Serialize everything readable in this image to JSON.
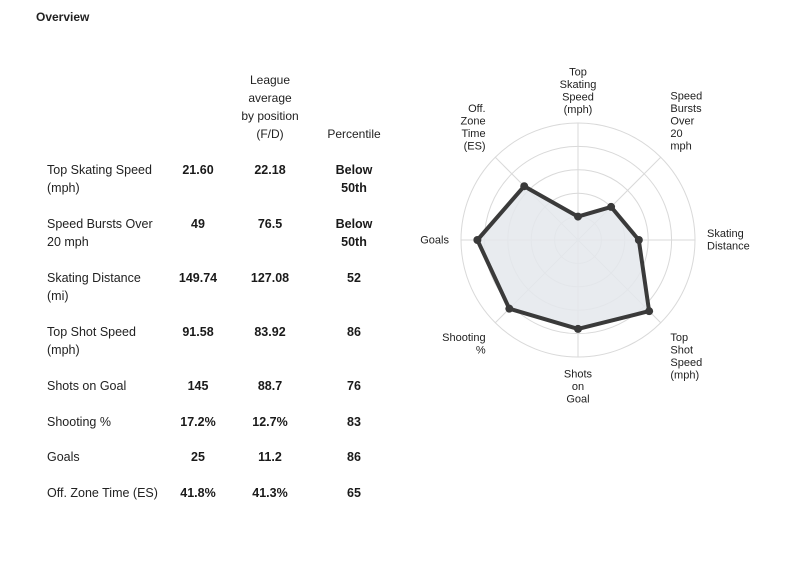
{
  "overview": {
    "title": "Overview"
  },
  "table": {
    "headers": {
      "league_lines": [
        "League",
        "average",
        "by position",
        "(F/D)"
      ],
      "percentile": "Percentile"
    },
    "rows": [
      {
        "metric": "Top Skating Speed (mph)",
        "player": "21.60",
        "league": "22.18",
        "percentile": "Below 50th"
      },
      {
        "metric": "Speed Bursts Over 20 mph",
        "player": "49",
        "league": "76.5",
        "percentile": "Below 50th"
      },
      {
        "metric": "Skating Distance (mi)",
        "player": "149.74",
        "league": "127.08",
        "percentile": "52"
      },
      {
        "metric": "Top Shot Speed (mph)",
        "player": "91.58",
        "league": "83.92",
        "percentile": "86"
      },
      {
        "metric": "Shots on Goal",
        "player": "145",
        "league": "88.7",
        "percentile": "76"
      },
      {
        "metric": "Shooting %",
        "player": "17.2%",
        "league": "12.7%",
        "percentile": "83"
      },
      {
        "metric": "Goals",
        "player": "25",
        "league": "11.2",
        "percentile": "86"
      },
      {
        "metric": "Off. Zone Time (ES)",
        "player": "41.8%",
        "league": "41.3%",
        "percentile": "65"
      }
    ]
  },
  "chart_data": {
    "type": "radar",
    "axes": [
      {
        "label_lines": [
          "Top",
          "Skating",
          "Speed",
          "(mph)"
        ]
      },
      {
        "label_lines": [
          "Speed",
          "Bursts",
          "Over",
          "20",
          "mph"
        ]
      },
      {
        "label_lines": [
          "Skating",
          "Distance"
        ]
      },
      {
        "label_lines": [
          "Top",
          "Shot",
          "Speed",
          "(mph)"
        ]
      },
      {
        "label_lines": [
          "Shots",
          "on",
          "Goal"
        ]
      },
      {
        "label_lines": [
          "Shooting",
          "%"
        ]
      },
      {
        "label_lines": [
          "Goals"
        ]
      },
      {
        "label_lines": [
          "Off.",
          "Zone",
          "Time",
          "(ES)"
        ]
      }
    ],
    "values": [
      20,
      40,
      52,
      86,
      76,
      83,
      86,
      65
    ],
    "rmax": 100,
    "rings": [
      20,
      40,
      60,
      80,
      100
    ],
    "grid": true,
    "colors": {
      "line": "#3a3a3a",
      "fill": "#e4e8ec",
      "grid": "#d9d9d9"
    }
  }
}
